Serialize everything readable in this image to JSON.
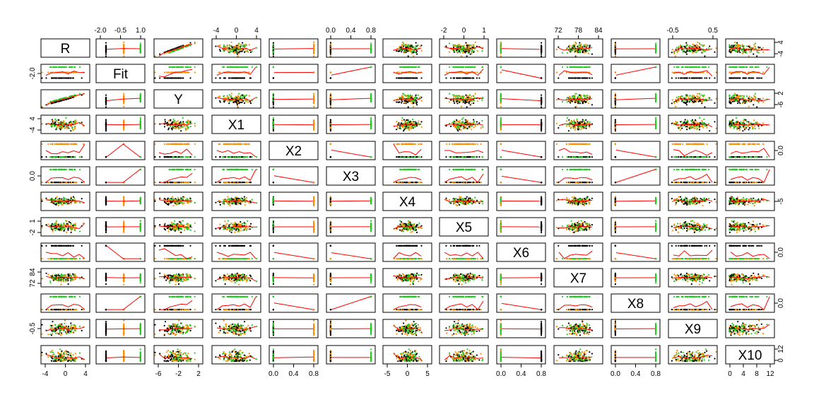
{
  "chart_data": {
    "type": "scatter",
    "subtype": "scatterplot-matrix",
    "variables": [
      "R",
      "Fit",
      "Y",
      "X1",
      "X2",
      "X3",
      "X4",
      "X5",
      "X6",
      "X7",
      "X8",
      "X9",
      "X10"
    ],
    "ranges": [
      [
        -5,
        6
      ],
      [
        -2.8,
        1.2
      ],
      [
        -7,
        4.5
      ],
      [
        -6,
        7
      ],
      [
        -0.05,
        1.05
      ],
      [
        -0.05,
        1.05
      ],
      [
        -8,
        8
      ],
      [
        -3,
        2.2
      ],
      [
        -0.05,
        1.05
      ],
      [
        70,
        86
      ],
      [
        -0.05,
        1.05
      ],
      [
        -1,
        1
      ],
      [
        -0.5,
        13.5
      ]
    ],
    "kinds": [
      "cont",
      "disc",
      "cont",
      "cont",
      "bin",
      "bin",
      "cont",
      "cont",
      "bin",
      "cont",
      "bin",
      "cont",
      "cont"
    ],
    "fit_levels": [
      -2.1,
      -0.5,
      1.0
    ],
    "group_colors": [
      "#000000",
      "#ff8c00",
      "#22cc22"
    ],
    "smoother_color": "#ff0000",
    "axis_ticks": {
      "top": [
        {
          "col": 1,
          "ticks": [
            "-2.0",
            "-0.5",
            "1.0"
          ]
        },
        {
          "col": 3,
          "ticks": [
            "-4",
            "0",
            "4"
          ]
        },
        {
          "col": 5,
          "ticks": [
            "0.0",
            "0.4",
            "0.8"
          ]
        },
        {
          "col": 7,
          "ticks": [
            "-2",
            "0",
            "1"
          ]
        },
        {
          "col": 9,
          "ticks": [
            "72",
            "78",
            "84"
          ]
        },
        {
          "col": 11,
          "ticks": [
            "-0.5",
            "0.5"
          ]
        }
      ],
      "bottom": [
        {
          "col": 0,
          "ticks": [
            "-4",
            "0",
            "4"
          ]
        },
        {
          "col": 2,
          "ticks": [
            "-6",
            "-2",
            "2"
          ]
        },
        {
          "col": 4,
          "ticks": [
            "0.0",
            "0.4",
            "0.8"
          ]
        },
        {
          "col": 6,
          "ticks": [
            "-5",
            "0",
            "5"
          ]
        },
        {
          "col": 8,
          "ticks": [
            "0.0",
            "0.4",
            "0.8"
          ]
        },
        {
          "col": 10,
          "ticks": [
            "0.0",
            "0.4",
            "0.8"
          ]
        },
        {
          "col": 12,
          "ticks": [
            "0",
            "4",
            "8",
            "12"
          ]
        }
      ],
      "left": [
        {
          "row": 1,
          "ticks": [
            "-2.0"
          ]
        },
        {
          "row": 3,
          "ticks": [
            "-4",
            "4"
          ]
        },
        {
          "row": 5,
          "ticks": [
            "0.0"
          ]
        },
        {
          "row": 7,
          "ticks": [
            "-2",
            "1"
          ]
        },
        {
          "row": 9,
          "ticks": [
            "72",
            "84"
          ]
        },
        {
          "row": 11,
          "ticks": [
            "-0.5"
          ]
        }
      ],
      "right": [
        {
          "row": 0,
          "ticks": [
            "-4",
            "4"
          ]
        },
        {
          "row": 2,
          "ticks": [
            "-6",
            "2"
          ]
        },
        {
          "row": 4,
          "ticks": [
            "0.0"
          ]
        },
        {
          "row": 6,
          "ticks": [
            "-5"
          ]
        },
        {
          "row": 8,
          "ticks": [
            "0.0"
          ]
        },
        {
          "row": 10,
          "ticks": [
            "0.0"
          ]
        },
        {
          "row": 12,
          "ticks": [
            "0",
            "12"
          ]
        }
      ]
    },
    "legend": "none",
    "grid": false,
    "points_per_panel": 150
  }
}
